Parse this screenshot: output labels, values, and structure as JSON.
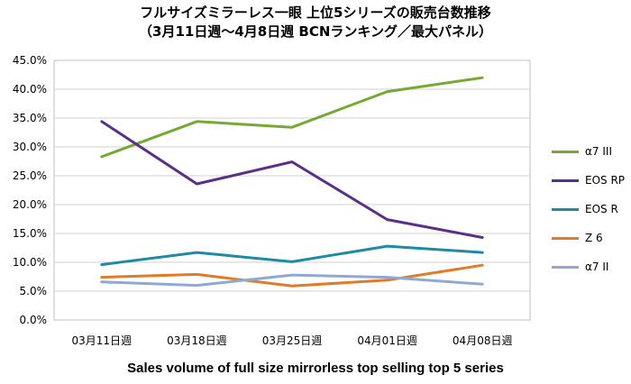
{
  "chart_data": {
    "type": "line",
    "title": "フルサイズミラーレス一眼 上位5シリーズの販売台数推移",
    "subtitle": "（3月11日週～4月8日週  BCNランキング／最大パネル）",
    "caption": "Sales volume of full size mirrorless top selling top 5 series",
    "categories": [
      "03月11日週",
      "03月18日週",
      "03月25日週",
      "04月01日週",
      "04月08日週"
    ],
    "y_ticks": [
      "0.0%",
      "5.0%",
      "10.0%",
      "15.0%",
      "20.0%",
      "25.0%",
      "30.0%",
      "35.0%",
      "40.0%",
      "45.0%"
    ],
    "ylim": [
      0,
      45
    ],
    "y_unit": "%",
    "grid": "horizontal",
    "legend_position": "right",
    "series": [
      {
        "name": "α7 III",
        "color": "#76a932",
        "values": [
          28.3,
          34.4,
          33.4,
          39.6,
          42.0
        ]
      },
      {
        "name": "EOS RP",
        "color": "#5b2f86",
        "values": [
          34.4,
          23.6,
          27.4,
          17.4,
          14.3
        ]
      },
      {
        "name": "EOS R",
        "color": "#1f8aa3",
        "values": [
          9.6,
          11.7,
          10.1,
          12.8,
          11.7
        ]
      },
      {
        "name": "Z 6",
        "color": "#e07b26",
        "values": [
          7.4,
          7.9,
          5.9,
          6.9,
          9.5
        ]
      },
      {
        "name": "α7 II",
        "color": "#8ea9d6",
        "values": [
          6.6,
          6.0,
          7.8,
          7.4,
          6.2
        ]
      }
    ]
  }
}
